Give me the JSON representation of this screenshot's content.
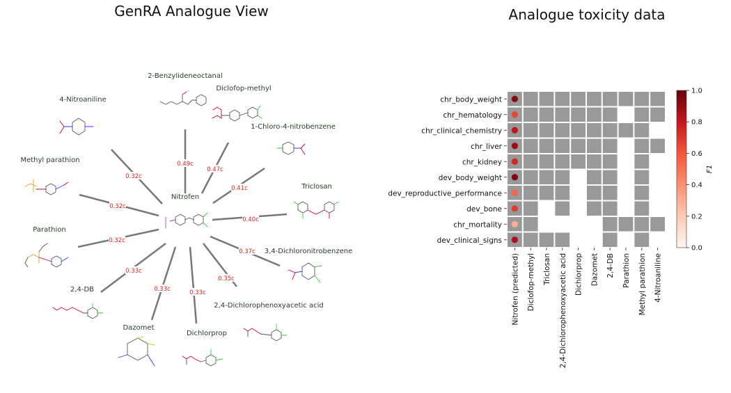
{
  "left_panel": {
    "title": "GenRA Analogue View",
    "center": {
      "name": "Nitrofen"
    },
    "analogues": [
      {
        "name": "2-Benzylideneoctanal",
        "similarity": ""
      },
      {
        "name": "Diclofop-methyl",
        "similarity": "0.49c"
      },
      {
        "name": "1-Chloro-4-nitrobenzene",
        "similarity": "0.47c"
      },
      {
        "name": "Triclosan",
        "similarity": "0.41c"
      },
      {
        "name": "3,4-Dichloronitrobenzene",
        "similarity": "0.40c"
      },
      {
        "name": "2,4-Dichlorophenoxyacetic acid",
        "similarity": "0.37c"
      },
      {
        "name": "Dichlorprop",
        "similarity": "0.35c"
      },
      {
        "name": "Dazomet",
        "similarity": "0.33c"
      },
      {
        "name": "2,4-DB",
        "similarity": "0.33c"
      },
      {
        "name": "Parathion",
        "similarity": "0.33c"
      },
      {
        "name": "Methyl parathion",
        "similarity": "0.32c"
      },
      {
        "name": "4-Nitroaniline",
        "similarity": "0.32c"
      }
    ],
    "extra_edge_label": "0.32c"
  },
  "chart_data": {
    "type": "heatmap",
    "title": "Analogue toxicity data",
    "rows": [
      "chr_body_weight",
      "chr_hematology",
      "chr_clinical_chemistry",
      "chr_liver",
      "chr_kidney",
      "dev_body_weight",
      "dev_reproductive_performance",
      "dev_bone",
      "chr_mortality",
      "dev_clinical_signs"
    ],
    "columns": [
      "Nitrofen (predicted)",
      "Diclofop-methyl",
      "Triclosan",
      "2,4-Dichlorophenoxyacetic acid",
      "Dichlorprop",
      "Dazomet",
      "2,4-DB",
      "Parathion",
      "Methyl parathion",
      "4-Nitroaniline"
    ],
    "predicted_f1": [
      0.93,
      0.65,
      0.82,
      0.88,
      0.75,
      0.95,
      0.55,
      0.68,
      0.3,
      0.85
    ],
    "data_available": [
      [
        1,
        1,
        1,
        1,
        1,
        1,
        1,
        1,
        1
      ],
      [
        1,
        1,
        1,
        1,
        1,
        1,
        0,
        1,
        1
      ],
      [
        1,
        1,
        1,
        1,
        1,
        1,
        1,
        1,
        0
      ],
      [
        1,
        1,
        1,
        1,
        1,
        1,
        0,
        1,
        1
      ],
      [
        1,
        1,
        1,
        1,
        1,
        1,
        0,
        1,
        0
      ],
      [
        1,
        1,
        1,
        0,
        1,
        1,
        0,
        1,
        0
      ],
      [
        1,
        1,
        1,
        0,
        1,
        1,
        0,
        1,
        0
      ],
      [
        1,
        0,
        1,
        0,
        1,
        1,
        0,
        1,
        0
      ],
      [
        1,
        0,
        0,
        0,
        0,
        1,
        1,
        1,
        1
      ],
      [
        1,
        1,
        1,
        0,
        0,
        1,
        0,
        1,
        0
      ]
    ],
    "colorbar": {
      "label": "F1",
      "min": 0.0,
      "max": 1.0,
      "ticks": [
        "0.0",
        "0.2",
        "0.4",
        "0.6",
        "0.8",
        "1.0"
      ]
    },
    "colors": {
      "available": "#999999",
      "scale_low": "#fff5f0",
      "scale_high": "#67000d"
    }
  }
}
